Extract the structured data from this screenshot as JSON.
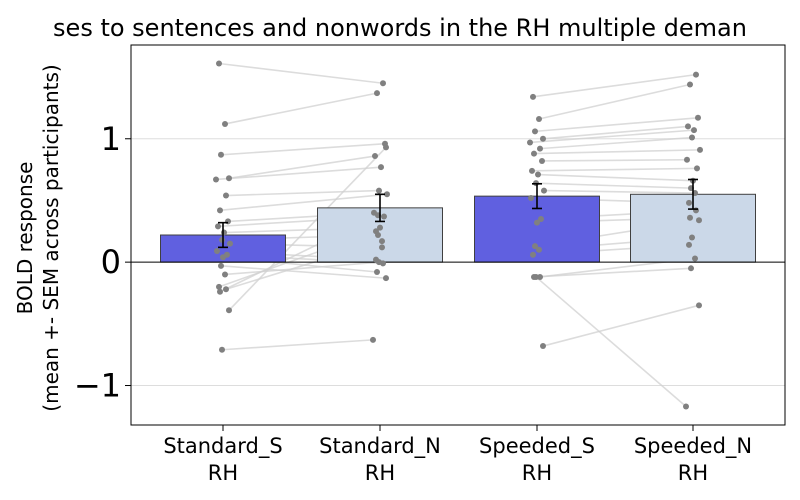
{
  "chart_data": {
    "type": "bar",
    "title": "ses to sentences and nonwords in the RH multiple deman",
    "ylabel_lines": [
      "BOLD response",
      "(mean +- SEM across participants)"
    ],
    "categories": [
      {
        "line1": "Standard_S",
        "line2": "RH"
      },
      {
        "line1": "Standard_N",
        "line2": "RH"
      },
      {
        "line1": "Speeded_S",
        "line2": "RH"
      },
      {
        "line1": "Speeded_N",
        "line2": "RH"
      }
    ],
    "values": [
      0.22,
      0.44,
      0.535,
      0.55
    ],
    "sem": [
      0.1,
      0.11,
      0.1,
      0.12
    ],
    "bar_colors": [
      "#6060e0",
      "#cbd8e8",
      "#6060e0",
      "#cbd8e8"
    ],
    "bar_edge_color": "#404040",
    "point_color": "#808080",
    "line_color": "#d0d0d0",
    "ylim": [
      -1.32,
      1.76
    ],
    "yticks": [
      -1,
      0,
      1
    ],
    "ytick_labels": [
      "−1",
      "0",
      "1"
    ],
    "grid": true,
    "participant_pairs": [
      [
        1.61,
        1.45
      ],
      [
        1.12,
        1.37
      ],
      [
        0.87,
        0.96
      ],
      [
        0.68,
        0.86
      ],
      [
        0.67,
        0.77
      ],
      [
        0.54,
        0.58
      ],
      [
        0.42,
        0.55
      ],
      [
        0.33,
        0.4
      ],
      [
        0.29,
        0.37
      ],
      [
        0.24,
        0.28
      ],
      [
        0.18,
        0.22
      ],
      [
        0.15,
        0.12
      ],
      [
        0.09,
        0.02
      ],
      [
        0.06,
        -0.01
      ],
      [
        0.04,
        -0.08
      ],
      [
        -0.03,
        -0.13
      ],
      [
        -0.1,
        0.0
      ],
      [
        -0.2,
        0.25
      ],
      [
        -0.22,
        0.17
      ],
      [
        -0.24,
        0.38
      ],
      [
        -0.39,
        0.93
      ],
      [
        -0.71,
        -0.63
      ]
    ],
    "speeded_pairs": [
      [
        1.34,
        1.52
      ],
      [
        1.16,
        1.44
      ],
      [
        1.06,
        1.17
      ],
      [
        1.0,
        1.1
      ],
      [
        0.97,
        1.07
      ],
      [
        0.92,
        1.01
      ],
      [
        0.88,
        0.91
      ],
      [
        0.82,
        0.83
      ],
      [
        0.74,
        0.76
      ],
      [
        0.71,
        0.66
      ],
      [
        0.64,
        0.6
      ],
      [
        0.58,
        0.56
      ],
      [
        0.52,
        0.48
      ],
      [
        0.35,
        0.42
      ],
      [
        0.32,
        0.36
      ],
      [
        0.13,
        0.34
      ],
      [
        0.1,
        0.2
      ],
      [
        0.06,
        0.14
      ],
      [
        -0.12,
        0.03
      ],
      [
        -0.12,
        -0.05
      ],
      [
        -0.68,
        -0.35
      ],
      [
        -0.12,
        -1.17
      ]
    ]
  }
}
